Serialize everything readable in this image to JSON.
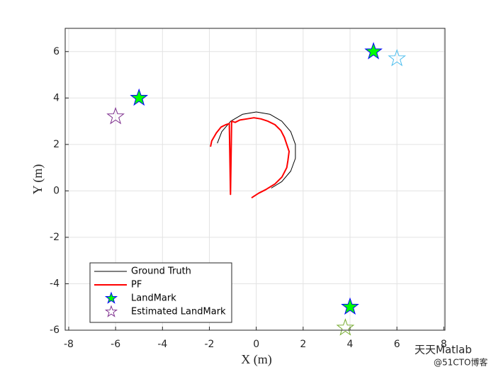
{
  "chart_data": {
    "type": "line",
    "xlabel": "X (m)",
    "ylabel": "Y (m)",
    "xlim": [
      -8.15,
      8.05
    ],
    "ylim": [
      -6,
      7
    ],
    "xticks": [
      -8,
      -6,
      -4,
      -2,
      0,
      2,
      4,
      6,
      8
    ],
    "yticks": [
      -6,
      -4,
      -2,
      0,
      2,
      4,
      6
    ],
    "grid": true,
    "legend_location": "southwest",
    "series": [
      {
        "name": "Ground Truth",
        "color": "#000000",
        "linewidth": 1,
        "x": [
          -1.66,
          -1.47,
          -1.09,
          -0.58,
          0,
          0.58,
          1.09,
          1.47,
          1.67,
          1.67,
          1.47,
          1.09,
          0.64
        ],
        "y": [
          2.05,
          2.55,
          3.0,
          3.3,
          3.4,
          3.3,
          3.0,
          2.55,
          2.0,
          1.4,
          0.85,
          0.4,
          0.12
        ]
      },
      {
        "name": "PF",
        "color": "#ff0000",
        "linewidth": 2,
        "x": [
          -1.95,
          -1.9,
          -1.7,
          -1.5,
          -1.3,
          -1.15,
          -1.1,
          -1.05,
          -0.9,
          -0.7,
          -0.4,
          -0.1,
          0.2,
          0.5,
          0.8,
          1.05,
          1.2,
          1.3,
          1.4,
          1.35,
          1.3,
          1.1,
          0.8,
          0.4,
          0.1,
          -0.2
        ],
        "y": [
          1.9,
          2.15,
          2.5,
          2.75,
          2.85,
          2.9,
          -0.15,
          3.0,
          2.95,
          3.05,
          3.1,
          3.15,
          3.1,
          3.0,
          2.85,
          2.6,
          2.3,
          2.0,
          1.7,
          1.3,
          1.0,
          0.6,
          0.3,
          0.05,
          -0.1,
          -0.3
        ]
      },
      {
        "name": "LandMark",
        "color": "#0000ff",
        "marker": "pentagram",
        "marker_fill": "#00ff00",
        "x": [
          -5,
          5,
          4
        ],
        "y": [
          4,
          6,
          -5
        ]
      },
      {
        "name": "Estimated LandMark",
        "color": "#7e2f8e",
        "marker": "pentagram",
        "marker_colors": [
          "#7e2f8e",
          "#4dbeee",
          "#77ac30"
        ],
        "x": [
          -6,
          6,
          3.8
        ],
        "y": [
          3.2,
          5.7,
          -5.9
        ]
      }
    ],
    "watermark": [
      "天天Matlab",
      "@51CTO博客"
    ]
  }
}
